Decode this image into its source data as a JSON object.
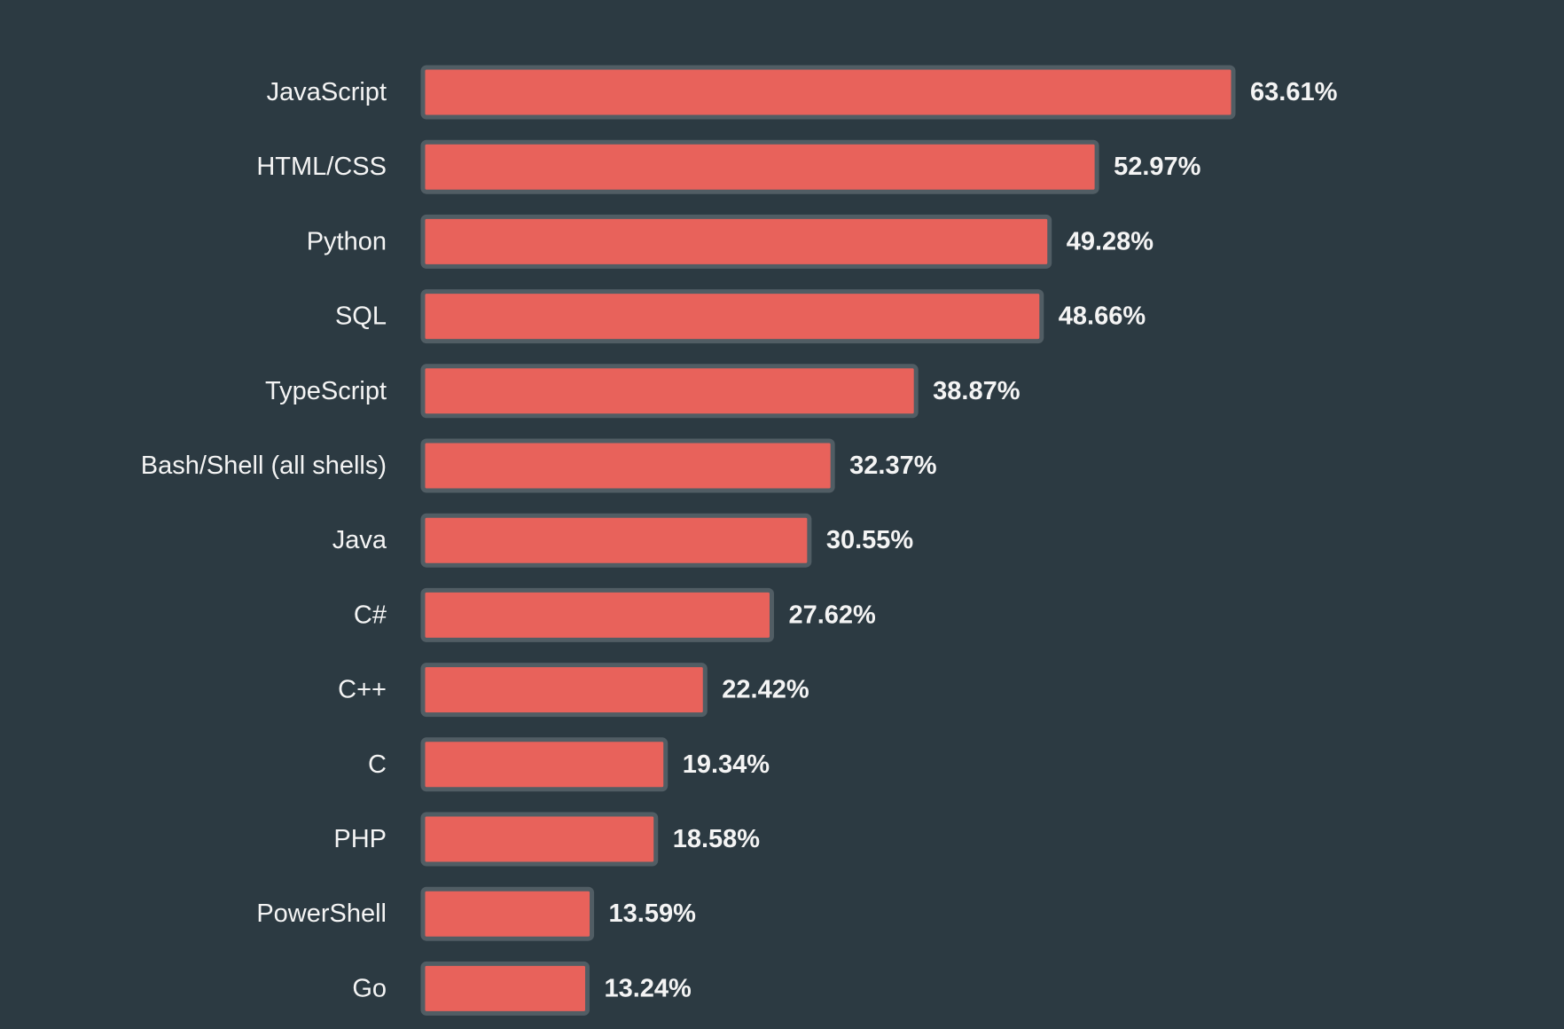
{
  "chart_data": {
    "type": "bar",
    "orientation": "horizontal",
    "categories": [
      "JavaScript",
      "HTML/CSS",
      "Python",
      "SQL",
      "TypeScript",
      "Bash/Shell (all shells)",
      "Java",
      "C#",
      "C++",
      "C",
      "PHP",
      "PowerShell",
      "Go"
    ],
    "values": [
      63.61,
      52.97,
      49.28,
      48.66,
      38.87,
      32.37,
      30.55,
      27.62,
      22.42,
      19.34,
      18.58,
      13.59,
      13.24
    ],
    "value_labels": [
      "63.61%",
      "52.97%",
      "49.28%",
      "48.66%",
      "38.87%",
      "32.37%",
      "30.55%",
      "27.62%",
      "22.42%",
      "19.34%",
      "18.58%",
      "13.59%",
      "13.24%"
    ],
    "unit": "%",
    "xlim": [
      0,
      63.61
    ],
    "grid": false,
    "legend": "none"
  },
  "colors": {
    "background": "#2c3a42",
    "bar_fill": "#e8625b",
    "bar_border": "#515d64",
    "text": "#f4f4f4"
  }
}
